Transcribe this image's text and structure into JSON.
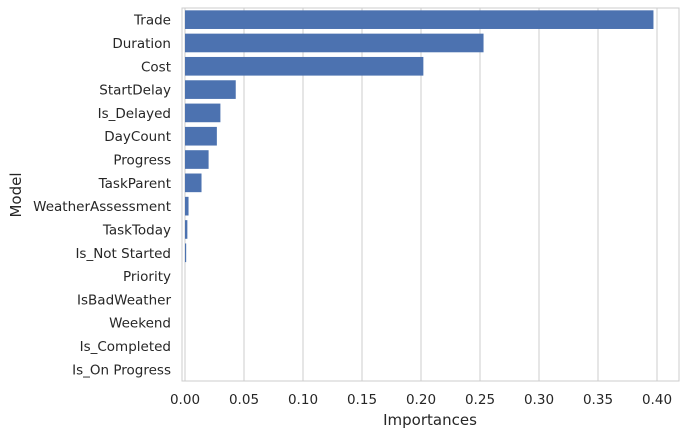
{
  "chart_data": {
    "type": "bar",
    "orientation": "horizontal",
    "categories": [
      "Trade",
      "Duration",
      "Cost",
      "StartDelay",
      "Is_Delayed",
      "DayCount",
      "Progress",
      "TaskParent",
      "WeatherAssessment",
      "TaskToday",
      "Is_Not Started",
      "Priority",
      "IsBadWeather",
      "Weekend",
      "Is_Completed",
      "Is_On Progress"
    ],
    "values": [
      0.397,
      0.253,
      0.202,
      0.043,
      0.03,
      0.027,
      0.02,
      0.014,
      0.003,
      0.002,
      0.001,
      0.0,
      0.0,
      0.0,
      0.0,
      0.0
    ],
    "xlabel": "Importances",
    "ylabel": "Model",
    "xlim": [
      0.0,
      0.42
    ],
    "xticks": [
      "0.00",
      "0.05",
      "0.10",
      "0.15",
      "0.20",
      "0.25",
      "0.30",
      "0.35",
      "0.40"
    ],
    "grid": "vertical",
    "bar_color": "#4c72b0",
    "grid_color": "#cccccc"
  }
}
